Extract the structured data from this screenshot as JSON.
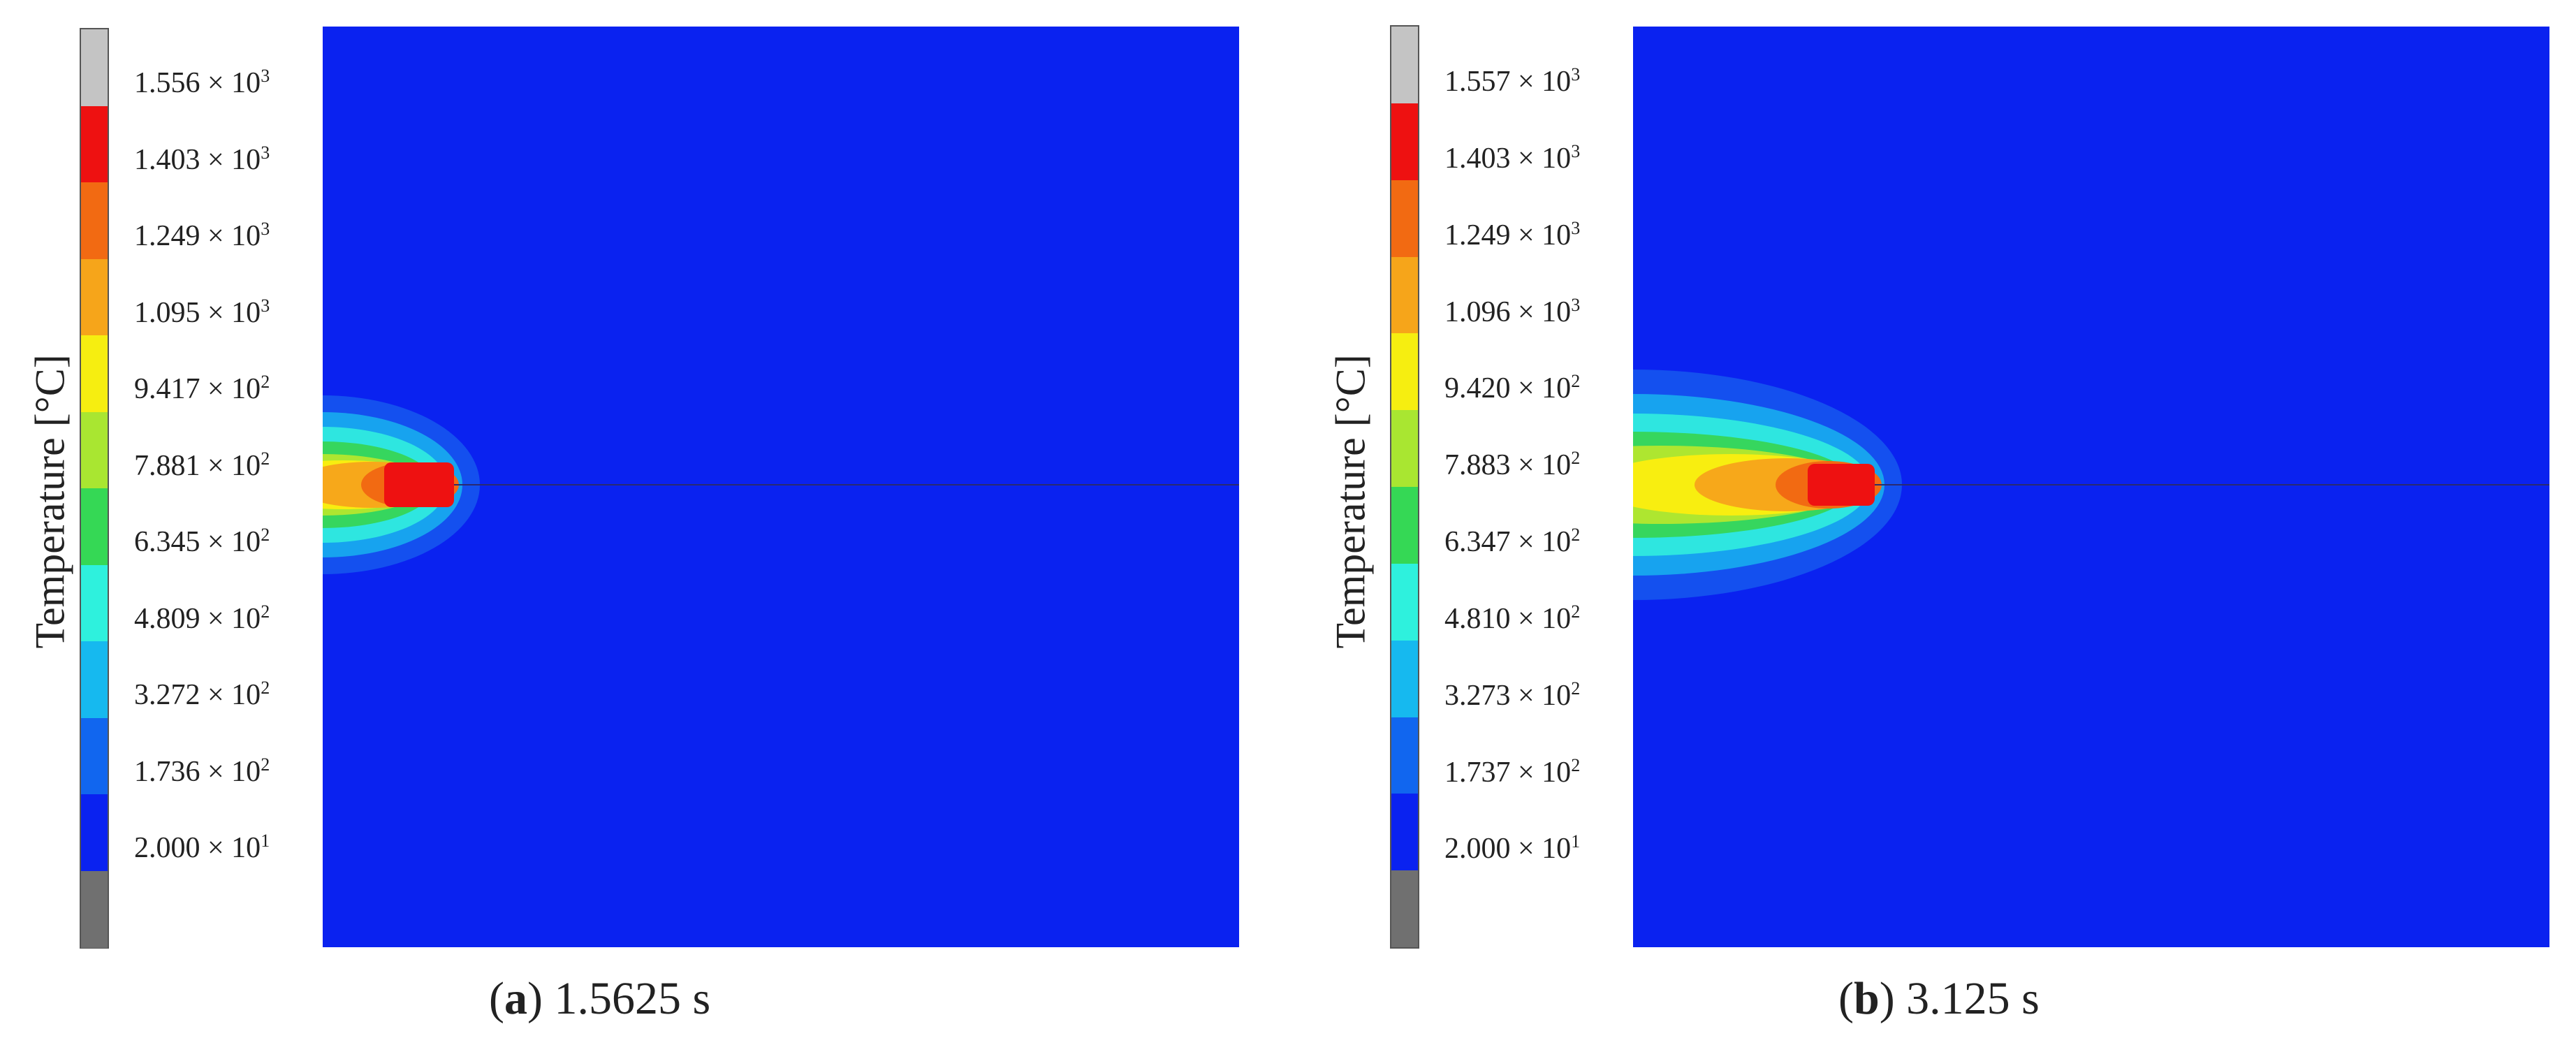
{
  "panels": [
    {
      "id": "a",
      "caption_open": "(",
      "caption_letter": "a",
      "caption_rest": ") 1.5625 s",
      "colorbar_label": "Temperature [°C]",
      "ticks": [
        {
          "mant": "1.556 × 10",
          "exp": "3"
        },
        {
          "mant": "1.403 × 10",
          "exp": "3"
        },
        {
          "mant": "1.249 × 10",
          "exp": "3"
        },
        {
          "mant": "1.095 × 10",
          "exp": "3"
        },
        {
          "mant": "9.417 × 10",
          "exp": "2"
        },
        {
          "mant": "7.881 × 10",
          "exp": "2"
        },
        {
          "mant": "6.345 × 10",
          "exp": "2"
        },
        {
          "mant": "4.809 × 10",
          "exp": "2"
        },
        {
          "mant": "3.272 × 10",
          "exp": "2"
        },
        {
          "mant": "1.736 × 10",
          "exp": "2"
        },
        {
          "mant": "2.000 × 10",
          "exp": "1"
        }
      ]
    },
    {
      "id": "b",
      "caption_open": "(",
      "caption_letter": "b",
      "caption_rest": ") 3.125 s",
      "colorbar_label": "Temperature [°C]",
      "ticks": [
        {
          "mant": "1.557 × 10",
          "exp": "3"
        },
        {
          "mant": "1.403 × 10",
          "exp": "3"
        },
        {
          "mant": "1.249 × 10",
          "exp": "3"
        },
        {
          "mant": "1.096 × 10",
          "exp": "3"
        },
        {
          "mant": "9.420 × 10",
          "exp": "2"
        },
        {
          "mant": "7.883 × 10",
          "exp": "2"
        },
        {
          "mant": "6.347 × 10",
          "exp": "2"
        },
        {
          "mant": "4.810 × 10",
          "exp": "2"
        },
        {
          "mant": "3.273 × 10",
          "exp": "2"
        },
        {
          "mant": "1.737 × 10",
          "exp": "2"
        },
        {
          "mant": "2.000 × 10",
          "exp": "1"
        }
      ]
    }
  ],
  "colors": {
    "colorbar": [
      "#c4c4c4",
      "#ee1111",
      "#f26a12",
      "#f6a51a",
      "#f6ee10",
      "#a9e631",
      "#35d855",
      "#2ef1dd",
      "#16b9ef",
      "#1166ef",
      "#0a22f0",
      "#707070"
    ],
    "field_background": "#0a22f0",
    "contours": [
      "#1450ef",
      "#17a3ef",
      "#2ee6e0",
      "#36d65e",
      "#aee630",
      "#f8ee10",
      "#f7a81a",
      "#f26a12",
      "#ee1111"
    ]
  }
}
